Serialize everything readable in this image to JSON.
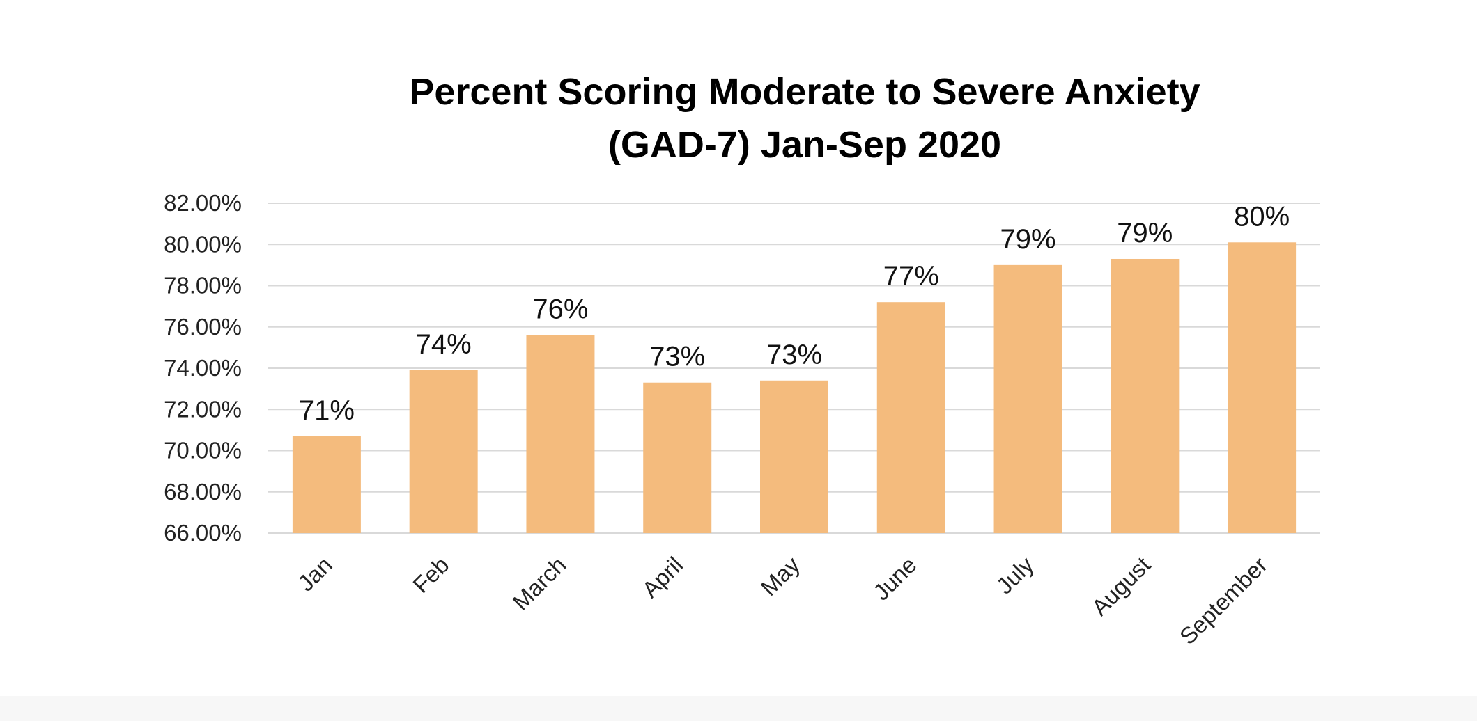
{
  "chart_data": {
    "type": "bar",
    "title": "Percent Scoring Moderate to Severe Anxiety",
    "subtitle": "(GAD-7) Jan-Sep 2020",
    "xlabel": "",
    "ylabel": "",
    "categories": [
      "Jan",
      "Feb",
      "March",
      "April",
      "May",
      "June",
      "July",
      "August",
      "September"
    ],
    "values": [
      70.7,
      73.9,
      75.6,
      73.3,
      73.4,
      77.2,
      79.0,
      79.3,
      80.1
    ],
    "data_labels": [
      "71%",
      "74%",
      "76%",
      "73%",
      "73%",
      "77%",
      "79%",
      "79%",
      "80%"
    ],
    "ylim": [
      66,
      82
    ],
    "yticks": [
      66,
      68,
      70,
      72,
      74,
      76,
      78,
      80,
      82
    ],
    "ytick_labels": [
      "66.00%",
      "68.00%",
      "70.00%",
      "72.00%",
      "74.00%",
      "76.00%",
      "78.00%",
      "80.00%",
      "82.00%"
    ],
    "grid": true,
    "legend": "none",
    "bar_color": "#f4bb7d",
    "grid_color": "#d9d9d9"
  }
}
